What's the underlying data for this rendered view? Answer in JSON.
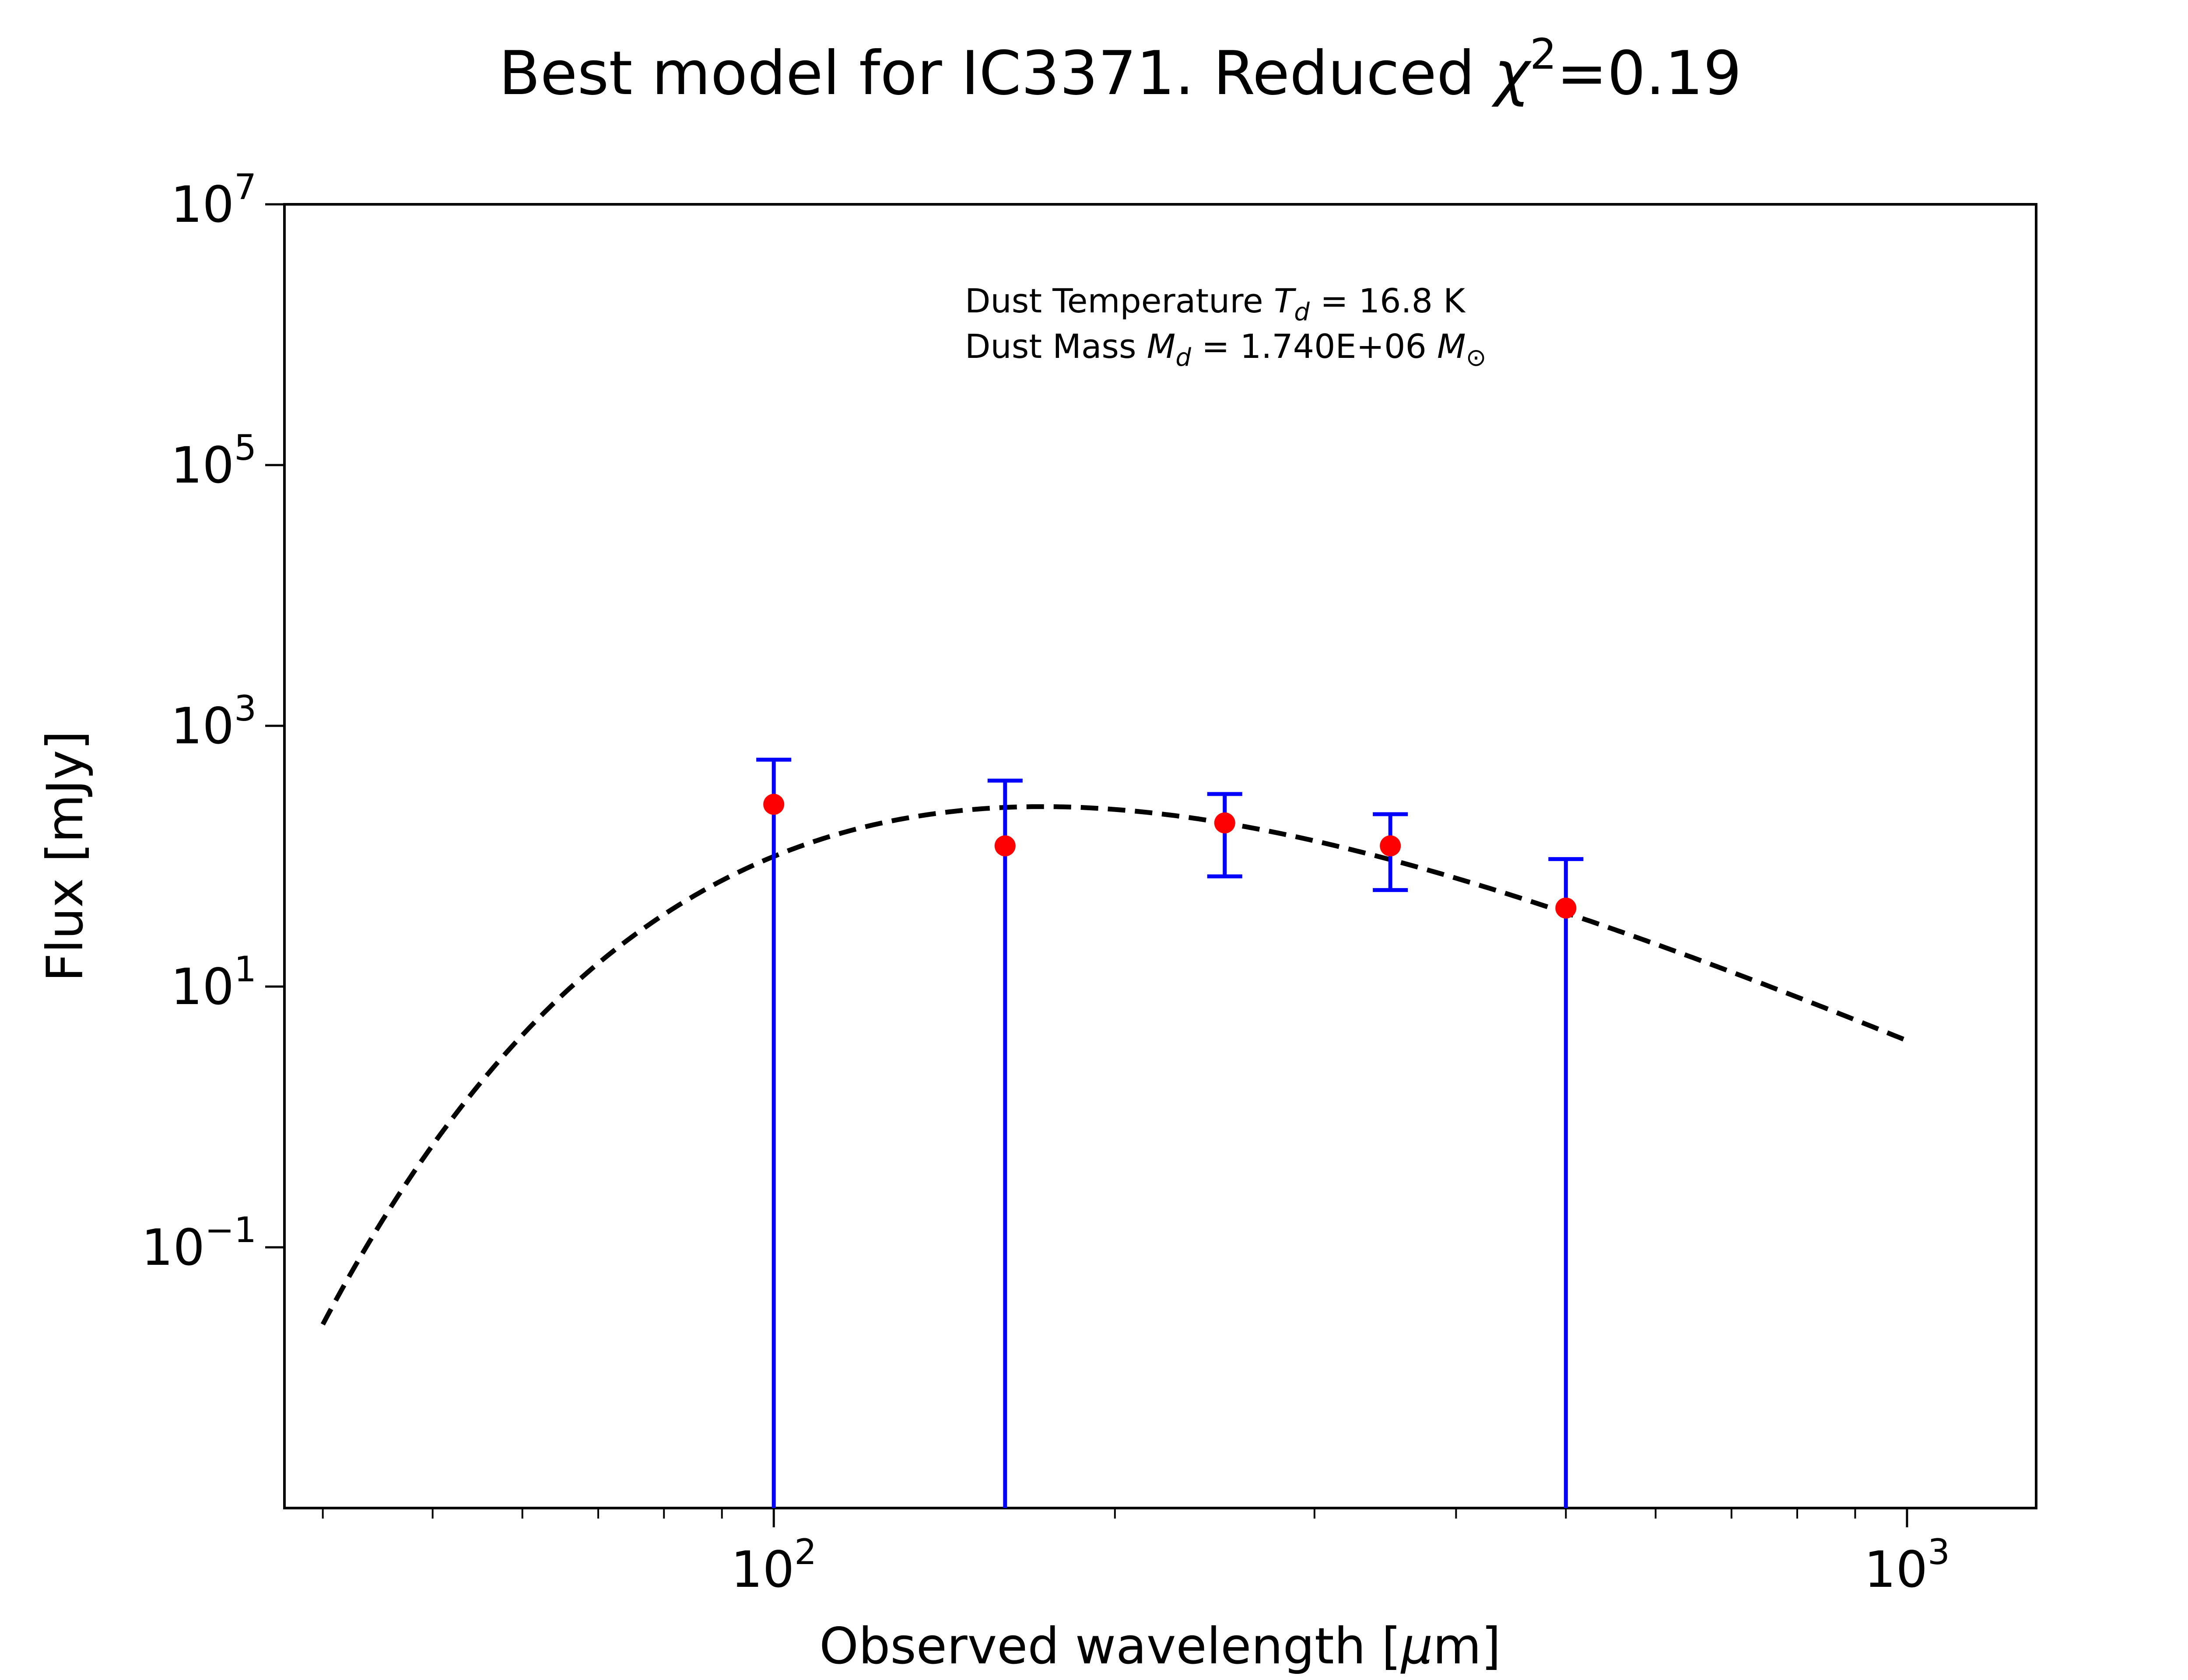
{
  "chart_data": {
    "type": "scatter",
    "title_prefix": "Best model for IC3371. Reduced ",
    "title_chi": "χ",
    "title_chi_exp": "2",
    "title_suffix": "=0.19",
    "xlabel_prefix": "Observed wavelength [",
    "xlabel_mu": "μ",
    "xlabel_suffix": "m]",
    "ylabel": "Flux [mJy]",
    "xscale": "log",
    "yscale": "log",
    "xlim": [
      37,
      1300
    ],
    "ylim": [
      0.001,
      10000000
    ],
    "x_ticks": [
      {
        "value": 100,
        "base": "10",
        "exp": "2"
      },
      {
        "value": 1000,
        "base": "10",
        "exp": "3"
      }
    ],
    "y_ticks": [
      {
        "value": 0.1,
        "base": "10",
        "exp": "−1"
      },
      {
        "value": 10,
        "base": "10",
        "exp": "1"
      },
      {
        "value": 1000,
        "base": "10",
        "exp": "3"
      },
      {
        "value": 100000,
        "base": "10",
        "exp": "5"
      },
      {
        "value": 10000000,
        "base": "10",
        "exp": "7"
      }
    ],
    "annotation": {
      "line1_prefix": "Dust Temperature ",
      "line1_sym": "T",
      "line1_sub": "d",
      "line1_suffix": " = 16.8 K",
      "line2_prefix": "Dust Mass ",
      "line2_sym": "M",
      "line2_sub": "d",
      "line2_mid": " = 1.740E+06 ",
      "line2_unit": "M",
      "line2_unit_sub": "⊙"
    },
    "observations": {
      "color_point": "#ff0000",
      "color_error": "#0000ff",
      "x": [
        100,
        160,
        250,
        350,
        500
      ],
      "y": [
        250,
        120,
        180,
        120,
        40
      ],
      "y_low": [
        0.001,
        0.001,
        70,
        55,
        0.001
      ],
      "y_high": [
        550,
        380,
        300,
        210,
        95
      ]
    },
    "model": {
      "style": "dashed",
      "color": "#000000",
      "temperature_K": 16.8,
      "beta": 2.0,
      "x_range": [
        40,
        1000
      ],
      "peak_flux": 240
    }
  }
}
